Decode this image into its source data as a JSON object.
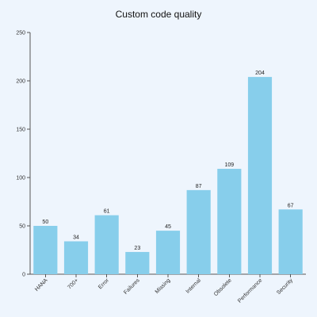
{
  "chart_data": {
    "type": "bar",
    "title": "Custom code quality",
    "xlabel": "",
    "ylabel": "",
    "categories": [
      "HANA",
      "700+",
      "Error",
      "Failures",
      "Missing",
      "Internal",
      "Obsolete",
      "Performance",
      "Security"
    ],
    "values": [
      50,
      34,
      61,
      23,
      45,
      87,
      109,
      204,
      67
    ],
    "ylim": [
      0,
      250
    ],
    "yticks": [
      0,
      50,
      100,
      150,
      200,
      250
    ],
    "bar_color": "#87ceeb",
    "grid": false,
    "legend": "none"
  }
}
